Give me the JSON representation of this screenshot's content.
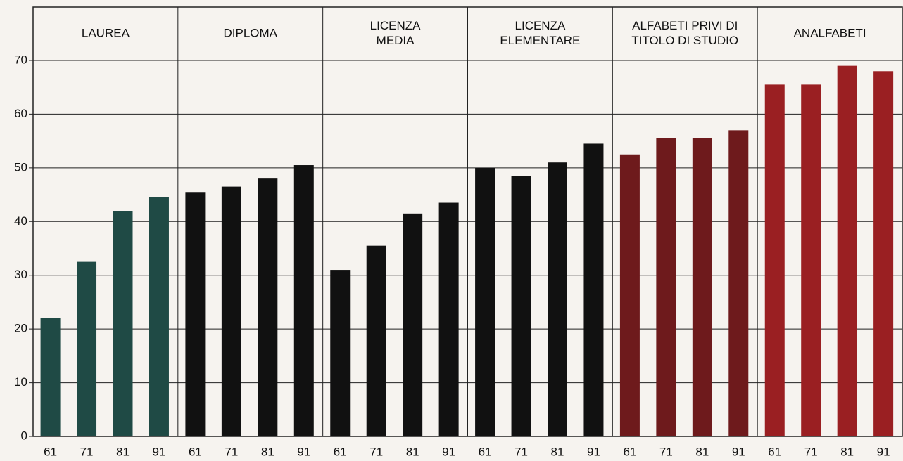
{
  "chart_data": {
    "type": "grouped-bar",
    "ylim": [
      0,
      70
    ],
    "yticks": [
      0,
      10,
      20,
      30,
      40,
      50,
      60,
      70
    ],
    "grid": true,
    "groups": [
      {
        "label": [
          "LAUREA"
        ],
        "color": "#1f4a45",
        "categories": [
          "61",
          "71",
          "81",
          "91"
        ],
        "values": [
          22,
          32.5,
          42,
          44.5
        ]
      },
      {
        "label": [
          "DIPLOMA"
        ],
        "color": "#111111",
        "categories": [
          "61",
          "71",
          "81",
          "91"
        ],
        "values": [
          45.5,
          46.5,
          48,
          50.5
        ]
      },
      {
        "label": [
          "LICENZA",
          "MEDIA"
        ],
        "color": "#111111",
        "categories": [
          "61",
          "71",
          "81",
          "91"
        ],
        "values": [
          31,
          35.5,
          41.5,
          43.5
        ]
      },
      {
        "label": [
          "LICENZA",
          "ELEMENTARE"
        ],
        "color": "#111111",
        "categories": [
          "61",
          "71",
          "81",
          "91"
        ],
        "values": [
          50,
          48.5,
          51,
          54.5
        ]
      },
      {
        "label": [
          "ALFABETI PRIVI DI",
          "TITOLO DI STUDIO"
        ],
        "color": "#6e1a1c",
        "categories": [
          "61",
          "71",
          "81",
          "91"
        ],
        "values": [
          52.5,
          55.5,
          55.5,
          57
        ]
      },
      {
        "label": [
          "ANALFABETI"
        ],
        "color": "#9a1f22",
        "categories": [
          "61",
          "71",
          "81",
          "91"
        ],
        "values": [
          65.5,
          65.5,
          69,
          68
        ]
      }
    ]
  }
}
